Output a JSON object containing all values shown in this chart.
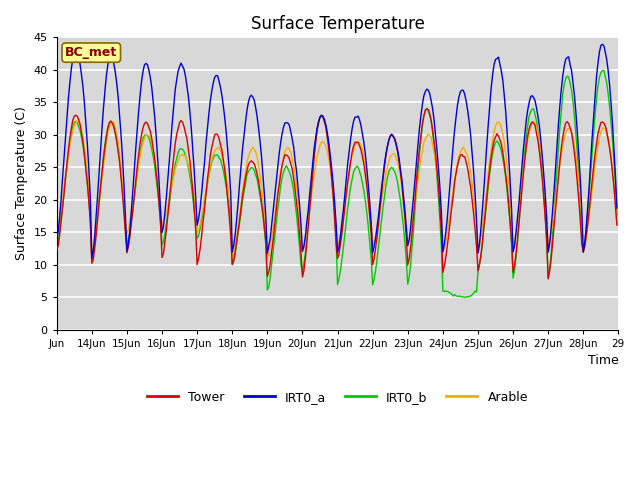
{
  "title": "Surface Temperature",
  "ylabel": "Surface Temperature (C)",
  "xlabel": "Time",
  "annotation": "BC_met",
  "ylim": [
    0,
    45
  ],
  "yticks": [
    0,
    5,
    10,
    15,
    20,
    25,
    30,
    35,
    40,
    45
  ],
  "colors": {
    "Tower": "#dd0000",
    "IRT0_a": "#0000dd",
    "IRT0_b": "#00cc00",
    "Arable": "#ffaa00"
  },
  "plot_bg": "#d8d8d8",
  "fig_bg": "#ffffff",
  "grid_color": "#ffffff",
  "legend_labels": [
    "Tower",
    "IRT0_a",
    "IRT0_b",
    "Arable"
  ],
  "annotation_fg": "#880000",
  "annotation_bg": "#ffff99",
  "annotation_edge": "#886600"
}
